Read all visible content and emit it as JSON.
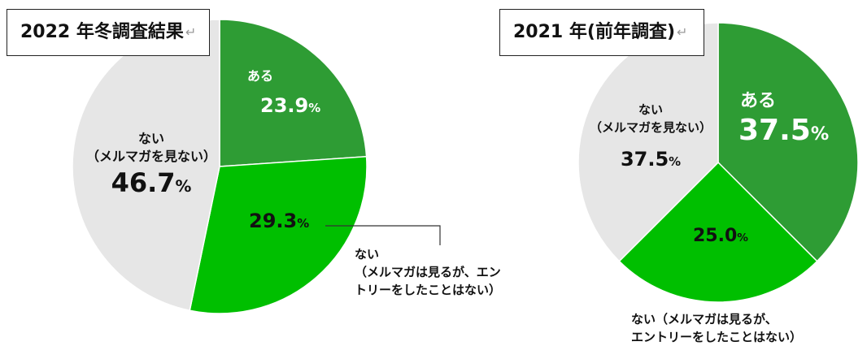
{
  "chart_data": [
    {
      "type": "pie",
      "title": "2022 年冬調査結果",
      "title_mark": "↵",
      "colors": [
        "#2e9c34",
        "#00bf00",
        "#e6e6e6"
      ],
      "slices": [
        {
          "label": "ある",
          "value": 23.9,
          "value_text": "23.9"
        },
        {
          "label": "ない\n（メルマガは見るが、エン\nトリーをしたことはない）",
          "value": 29.3,
          "value_text": "29.3"
        },
        {
          "label": "ない\n（メルマガを見ない）",
          "value": 46.7,
          "value_text": "46.7"
        }
      ],
      "unit": "%"
    },
    {
      "type": "pie",
      "title": "2021 年(前年調査)",
      "title_mark": "↵",
      "colors": [
        "#2e9c34",
        "#00bf00",
        "#e6e6e6"
      ],
      "slices": [
        {
          "label": "ある",
          "value": 37.5,
          "value_text": "37.5"
        },
        {
          "label": "ない（メルマガは見るが、\nエントリーをしたことはない）",
          "value": 25.0,
          "value_text": "25.0"
        },
        {
          "label": "ない\n（メルマガを見ない）",
          "value": 37.5,
          "value_text": "37.5"
        }
      ],
      "unit": "%"
    }
  ]
}
